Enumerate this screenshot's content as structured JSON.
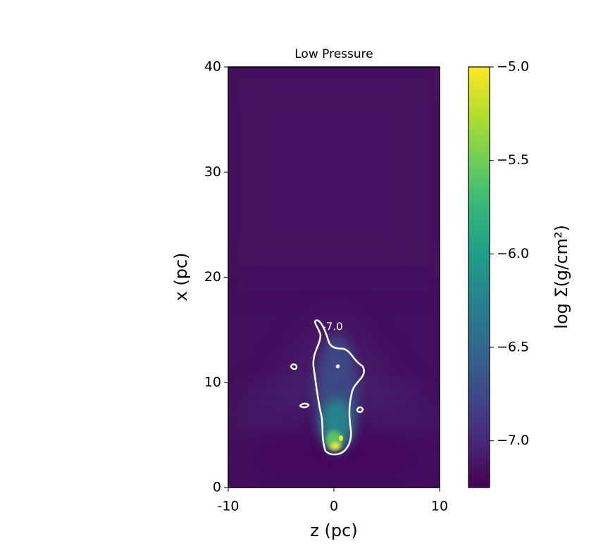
{
  "chart_data": {
    "type": "heatmap",
    "title": "Low Pressure",
    "xlabel": "z (pc)",
    "ylabel": "x (pc)",
    "xlim": [
      -10,
      10
    ],
    "xticks": [
      -10,
      0,
      10
    ],
    "ylim": [
      0,
      40
    ],
    "yticks": [
      0,
      10,
      20,
      30,
      40
    ],
    "colormap": "viridis",
    "colorbar": {
      "label": "log Σ(g/cm²)",
      "lim": [
        -7.25,
        -5.0
      ],
      "ticks": [
        {
          "value": -5.0,
          "label": "−5.0"
        },
        {
          "value": -5.5,
          "label": "−5.5"
        },
        {
          "value": -6.0,
          "label": "−6.0"
        },
        {
          "value": -6.5,
          "label": "−6.5"
        },
        {
          "value": -7.0,
          "label": "−7.0"
        }
      ]
    },
    "contour": {
      "level": -7.0,
      "label": "-7.0",
      "color": "#ffffff"
    }
  }
}
